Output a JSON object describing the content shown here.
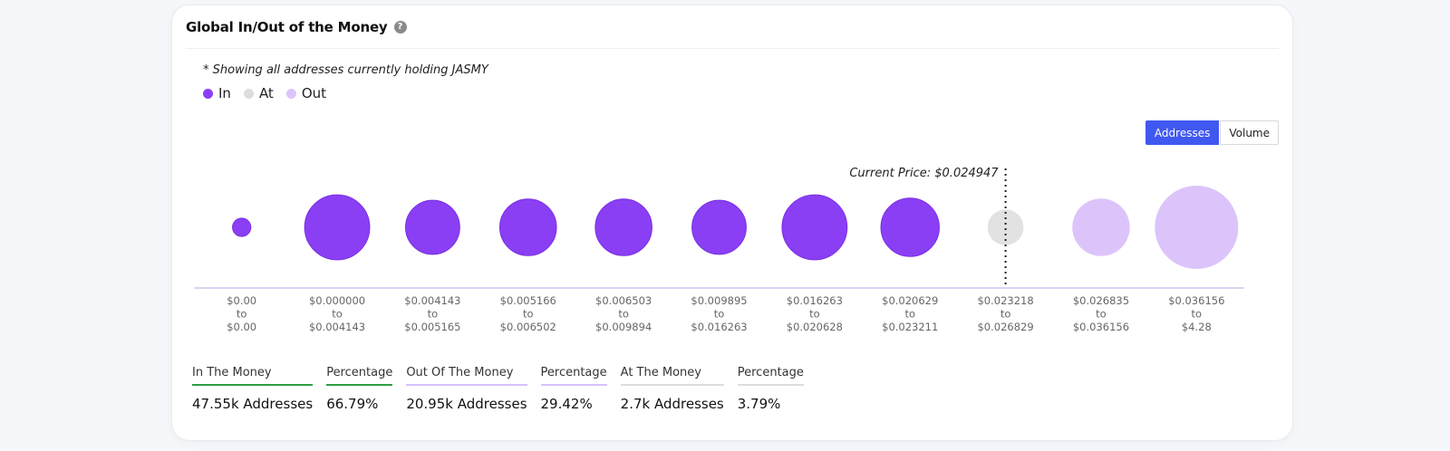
{
  "card": {
    "title": "Global In/Out of the Money",
    "help_icon": "?",
    "note": "* Showing all addresses currently holding JASMY"
  },
  "legend": [
    {
      "label": "In",
      "color": "#8a3ff5"
    },
    {
      "label": "At",
      "color": "#dddddd"
    },
    {
      "label": "Out",
      "color": "#dcc4fb"
    }
  ],
  "toggle": {
    "addresses_label": "Addresses",
    "volume_label": "Volume",
    "active": "Addresses"
  },
  "colors": {
    "in": "#8a3ff5",
    "at": "#e2e2e2",
    "out": "#dcc4fb",
    "axis": "#cfc6f0"
  },
  "chart_data": {
    "type": "bubble",
    "current_price_label": "Current Price: $0.024947",
    "current_price_bucket_index": 8,
    "buckets": [
      {
        "from": "$0.00",
        "to": "$0.00",
        "status": "in",
        "relative_size": 0.22
      },
      {
        "from": "$0.000000",
        "to": "$0.004143",
        "status": "in",
        "relative_size": 0.78
      },
      {
        "from": "$0.004143",
        "to": "$0.005165",
        "status": "in",
        "relative_size": 0.65
      },
      {
        "from": "$0.005166",
        "to": "$0.006502",
        "status": "in",
        "relative_size": 0.68
      },
      {
        "from": "$0.006503",
        "to": "$0.009894",
        "status": "in",
        "relative_size": 0.68
      },
      {
        "from": "$0.009895",
        "to": "$0.016263",
        "status": "in",
        "relative_size": 0.65
      },
      {
        "from": "$0.016263",
        "to": "$0.020628",
        "status": "in",
        "relative_size": 0.78
      },
      {
        "from": "$0.020629",
        "to": "$0.023211",
        "status": "in",
        "relative_size": 0.7
      },
      {
        "from": "$0.023218",
        "to": "$0.026829",
        "status": "at",
        "relative_size": 0.43
      },
      {
        "from": "$0.026835",
        "to": "$0.036156",
        "status": "out",
        "relative_size": 0.69
      },
      {
        "from": "$0.036156",
        "to": "$4.28",
        "status": "out",
        "relative_size": 1.0
      }
    ],
    "connector": "to"
  },
  "stats": [
    {
      "label": "In The Money",
      "value": "47.55k Addresses",
      "underline": "green"
    },
    {
      "label": "Percentage",
      "value": "66.79%",
      "underline": "green"
    },
    {
      "label": "Out Of The Money",
      "value": "20.95k Addresses",
      "underline": "purple"
    },
    {
      "label": "Percentage",
      "value": "29.42%",
      "underline": "purple"
    },
    {
      "label": "At The Money",
      "value": "2.7k Addresses",
      "underline": "gray"
    },
    {
      "label": "Percentage",
      "value": "3.79%",
      "underline": "gray"
    }
  ]
}
